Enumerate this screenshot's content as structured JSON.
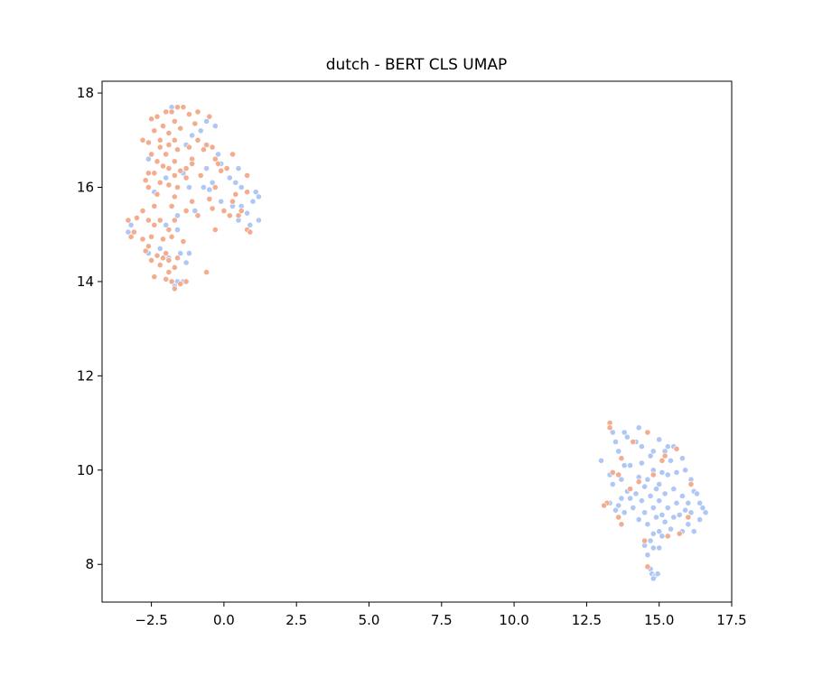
{
  "chart_data": {
    "type": "scatter",
    "title": "dutch - BERT CLS UMAP",
    "xlabel": "",
    "ylabel": "",
    "xlim": [
      -4.2,
      17.5
    ],
    "ylim": [
      7.2,
      18.25
    ],
    "x_ticks": [
      -2.5,
      0.0,
      2.5,
      5.0,
      7.5,
      10.0,
      12.5,
      15.0,
      17.5
    ],
    "x_tick_labels": [
      "−2.5",
      "0.0",
      "2.5",
      "5.0",
      "7.5",
      "10.0",
      "12.5",
      "15.0",
      "17.5"
    ],
    "y_ticks": [
      8,
      10,
      12,
      14,
      16,
      18
    ],
    "y_tick_labels": [
      "8",
      "10",
      "12",
      "14",
      "16",
      "18"
    ],
    "grid": false,
    "legend": "none",
    "series_colors": [
      "#aec7f5",
      "#f4ac8e"
    ],
    "series": [
      {
        "name": "",
        "color": "#aec7f5",
        "points": [
          [
            -1.8,
            17.7
          ],
          [
            -0.6,
            17.4
          ],
          [
            -0.3,
            17.3
          ],
          [
            -0.8,
            17.2
          ],
          [
            -1.1,
            17.1
          ],
          [
            -1.3,
            16.9
          ],
          [
            -0.2,
            16.7
          ],
          [
            -2.6,
            16.6
          ],
          [
            -0.1,
            16.5
          ],
          [
            0.5,
            16.4
          ],
          [
            -0.6,
            16.4
          ],
          [
            -1.4,
            16.3
          ],
          [
            -2.0,
            16.2
          ],
          [
            0.2,
            16.2
          ],
          [
            0.4,
            16.1
          ],
          [
            -0.4,
            16.1
          ],
          [
            -0.7,
            16.0
          ],
          [
            -1.2,
            16.0
          ],
          [
            0.6,
            16.0
          ],
          [
            -0.5,
            15.95
          ],
          [
            1.1,
            15.9
          ],
          [
            -2.4,
            15.9
          ],
          [
            1.2,
            15.8
          ],
          [
            -0.1,
            15.7
          ],
          [
            0.3,
            15.6
          ],
          [
            0.6,
            15.6
          ],
          [
            1.0,
            15.7
          ],
          [
            -1.0,
            15.5
          ],
          [
            0.8,
            15.45
          ],
          [
            -1.6,
            15.4
          ],
          [
            0.5,
            15.3
          ],
          [
            1.2,
            15.3
          ],
          [
            0.9,
            15.2
          ],
          [
            -2.0,
            15.2
          ],
          [
            -3.2,
            15.2
          ],
          [
            -3.3,
            15.05
          ],
          [
            -1.6,
            15.1
          ],
          [
            -1.2,
            14.6
          ],
          [
            -2.6,
            14.6
          ],
          [
            -1.9,
            14.5
          ],
          [
            -2.2,
            14.7
          ],
          [
            -1.5,
            14.6
          ],
          [
            -1.3,
            14.4
          ],
          [
            -1.6,
            14.0
          ],
          [
            -1.7,
            13.9
          ],
          [
            -1.4,
            14.0
          ],
          [
            13.4,
            10.8
          ],
          [
            13.8,
            10.8
          ],
          [
            14.3,
            10.9
          ],
          [
            13.5,
            10.6
          ],
          [
            13.9,
            10.7
          ],
          [
            14.2,
            10.6
          ],
          [
            15.0,
            10.65
          ],
          [
            15.3,
            10.5
          ],
          [
            15.5,
            10.5
          ],
          [
            14.8,
            10.4
          ],
          [
            13.6,
            10.4
          ],
          [
            14.4,
            10.5
          ],
          [
            15.2,
            10.4
          ],
          [
            15.8,
            10.25
          ],
          [
            13.0,
            10.2
          ],
          [
            14.0,
            10.1
          ],
          [
            14.7,
            10.3
          ],
          [
            15.4,
            10.2
          ],
          [
            14.4,
            10.15
          ],
          [
            15.9,
            10.0
          ],
          [
            13.8,
            10.1
          ],
          [
            14.8,
            10.0
          ],
          [
            15.1,
            9.95
          ],
          [
            15.3,
            9.9
          ],
          [
            15.6,
            9.95
          ],
          [
            13.3,
            9.9
          ],
          [
            14.3,
            9.85
          ],
          [
            14.6,
            9.8
          ],
          [
            13.7,
            9.8
          ],
          [
            15.0,
            9.7
          ],
          [
            16.1,
            9.8
          ],
          [
            13.4,
            9.7
          ],
          [
            14.5,
            9.65
          ],
          [
            14.9,
            9.6
          ],
          [
            15.5,
            9.6
          ],
          [
            16.2,
            9.55
          ],
          [
            13.9,
            9.55
          ],
          [
            14.2,
            9.5
          ],
          [
            14.7,
            9.45
          ],
          [
            15.2,
            9.5
          ],
          [
            15.8,
            9.45
          ],
          [
            16.3,
            9.5
          ],
          [
            13.7,
            9.4
          ],
          [
            14.0,
            9.4
          ],
          [
            14.4,
            9.35
          ],
          [
            15.0,
            9.35
          ],
          [
            15.6,
            9.3
          ],
          [
            16.0,
            9.3
          ],
          [
            16.4,
            9.3
          ],
          [
            13.3,
            9.3
          ],
          [
            13.6,
            9.25
          ],
          [
            14.1,
            9.2
          ],
          [
            14.8,
            9.2
          ],
          [
            15.3,
            9.2
          ],
          [
            15.9,
            9.15
          ],
          [
            16.5,
            9.2
          ],
          [
            13.5,
            9.15
          ],
          [
            13.8,
            9.1
          ],
          [
            14.5,
            9.1
          ],
          [
            15.1,
            9.05
          ],
          [
            15.7,
            9.05
          ],
          [
            16.1,
            9.1
          ],
          [
            16.6,
            9.1
          ],
          [
            14.9,
            9.0
          ],
          [
            15.5,
            9.0
          ],
          [
            16.4,
            8.95
          ],
          [
            13.6,
            9.0
          ],
          [
            14.3,
            8.95
          ],
          [
            15.2,
            8.9
          ],
          [
            16.0,
            8.85
          ],
          [
            14.6,
            8.85
          ],
          [
            15.0,
            8.7
          ],
          [
            15.4,
            8.75
          ],
          [
            15.8,
            8.7
          ],
          [
            14.8,
            8.65
          ],
          [
            15.1,
            8.6
          ],
          [
            16.2,
            8.7
          ],
          [
            14.7,
            8.5
          ],
          [
            14.5,
            8.4
          ],
          [
            14.8,
            8.35
          ],
          [
            15.0,
            8.35
          ],
          [
            14.6,
            8.2
          ],
          [
            14.7,
            7.9
          ],
          [
            14.75,
            7.8
          ],
          [
            14.85,
            7.75
          ],
          [
            14.95,
            7.8
          ],
          [
            14.8,
            7.7
          ]
        ]
      },
      {
        "name": "",
        "color": "#f4ac8e",
        "points": [
          [
            -1.6,
            17.7
          ],
          [
            -1.4,
            17.7
          ],
          [
            -2.0,
            17.6
          ],
          [
            -1.8,
            17.6
          ],
          [
            -2.3,
            17.5
          ],
          [
            -1.2,
            17.55
          ],
          [
            -0.9,
            17.6
          ],
          [
            -0.5,
            17.5
          ],
          [
            -2.5,
            17.45
          ],
          [
            -1.7,
            17.4
          ],
          [
            -1.0,
            17.35
          ],
          [
            -2.1,
            17.3
          ],
          [
            -1.5,
            17.25
          ],
          [
            -2.4,
            17.2
          ],
          [
            -1.9,
            17.15
          ],
          [
            -0.9,
            17.0
          ],
          [
            -2.2,
            17.0
          ],
          [
            -1.7,
            17.0
          ],
          [
            -2.6,
            16.95
          ],
          [
            -2.8,
            17.0
          ],
          [
            -2.2,
            16.85
          ],
          [
            -1.9,
            16.9
          ],
          [
            -1.6,
            16.8
          ],
          [
            -1.2,
            16.85
          ],
          [
            -0.6,
            16.9
          ],
          [
            -0.4,
            16.85
          ],
          [
            -0.7,
            16.8
          ],
          [
            0.3,
            16.7
          ],
          [
            -2.0,
            16.7
          ],
          [
            -2.5,
            16.7
          ],
          [
            -1.1,
            16.6
          ],
          [
            -0.3,
            16.6
          ],
          [
            -1.7,
            16.55
          ],
          [
            -2.3,
            16.55
          ],
          [
            -0.2,
            16.5
          ],
          [
            -1.1,
            16.5
          ],
          [
            -2.1,
            16.45
          ],
          [
            -1.9,
            16.4
          ],
          [
            -0.1,
            16.35
          ],
          [
            0.1,
            16.4
          ],
          [
            -1.5,
            16.35
          ],
          [
            -1.3,
            16.4
          ],
          [
            -2.6,
            16.3
          ],
          [
            -2.4,
            16.3
          ],
          [
            -1.7,
            16.25
          ],
          [
            -0.8,
            16.25
          ],
          [
            0.8,
            16.25
          ],
          [
            -1.3,
            16.2
          ],
          [
            -2.7,
            16.15
          ],
          [
            -2.2,
            16.1
          ],
          [
            -1.9,
            16.05
          ],
          [
            -1.6,
            16.0
          ],
          [
            -2.6,
            16.0
          ],
          [
            -0.3,
            16.0
          ],
          [
            0.8,
            15.9
          ],
          [
            0.4,
            15.85
          ],
          [
            -2.3,
            15.85
          ],
          [
            -1.7,
            15.8
          ],
          [
            -0.5,
            15.75
          ],
          [
            0.3,
            15.7
          ],
          [
            -1.1,
            15.7
          ],
          [
            -2.4,
            15.6
          ],
          [
            -1.8,
            15.6
          ],
          [
            -0.4,
            15.55
          ],
          [
            0.0,
            15.5
          ],
          [
            0.6,
            15.5
          ],
          [
            -1.3,
            15.5
          ],
          [
            -2.8,
            15.5
          ],
          [
            -0.9,
            15.4
          ],
          [
            0.2,
            15.4
          ],
          [
            0.5,
            15.4
          ],
          [
            -2.6,
            15.3
          ],
          [
            -2.2,
            15.3
          ],
          [
            -1.7,
            15.3
          ],
          [
            -3.0,
            15.35
          ],
          [
            -3.3,
            15.3
          ],
          [
            -3.1,
            15.05
          ],
          [
            -2.4,
            15.2
          ],
          [
            -1.9,
            15.1
          ],
          [
            -0.3,
            15.1
          ],
          [
            0.8,
            15.1
          ],
          [
            0.9,
            15.05
          ],
          [
            -3.2,
            14.95
          ],
          [
            -2.8,
            14.9
          ],
          [
            -2.5,
            14.95
          ],
          [
            -2.1,
            14.9
          ],
          [
            -1.8,
            14.95
          ],
          [
            -1.4,
            14.85
          ],
          [
            -2.6,
            14.75
          ],
          [
            -2.7,
            14.65
          ],
          [
            -2.0,
            14.6
          ],
          [
            -2.3,
            14.55
          ],
          [
            -2.1,
            14.5
          ],
          [
            -1.6,
            14.5
          ],
          [
            -1.9,
            14.45
          ],
          [
            -2.5,
            14.45
          ],
          [
            -2.2,
            14.35
          ],
          [
            -1.7,
            14.3
          ],
          [
            -1.9,
            14.2
          ],
          [
            -0.6,
            14.2
          ],
          [
            -2.4,
            14.1
          ],
          [
            -2.0,
            14.05
          ],
          [
            -1.8,
            14.0
          ],
          [
            -1.5,
            13.95
          ],
          [
            -1.7,
            13.85
          ],
          [
            -1.3,
            14.0
          ],
          [
            13.3,
            11.0
          ],
          [
            13.3,
            10.9
          ],
          [
            14.6,
            10.8
          ],
          [
            14.1,
            10.6
          ],
          [
            15.6,
            10.45
          ],
          [
            15.2,
            10.3
          ],
          [
            13.7,
            10.25
          ],
          [
            15.1,
            10.2
          ],
          [
            13.4,
            9.95
          ],
          [
            13.6,
            9.9
          ],
          [
            14.3,
            9.75
          ],
          [
            14.8,
            9.9
          ],
          [
            16.1,
            9.7
          ],
          [
            13.2,
            9.3
          ],
          [
            14.0,
            9.6
          ],
          [
            13.1,
            9.25
          ],
          [
            13.6,
            9.0
          ],
          [
            16.0,
            9.0
          ],
          [
            13.7,
            8.85
          ],
          [
            15.3,
            8.6
          ],
          [
            15.7,
            8.65
          ],
          [
            14.5,
            8.5
          ],
          [
            14.6,
            7.95
          ]
        ]
      }
    ]
  }
}
